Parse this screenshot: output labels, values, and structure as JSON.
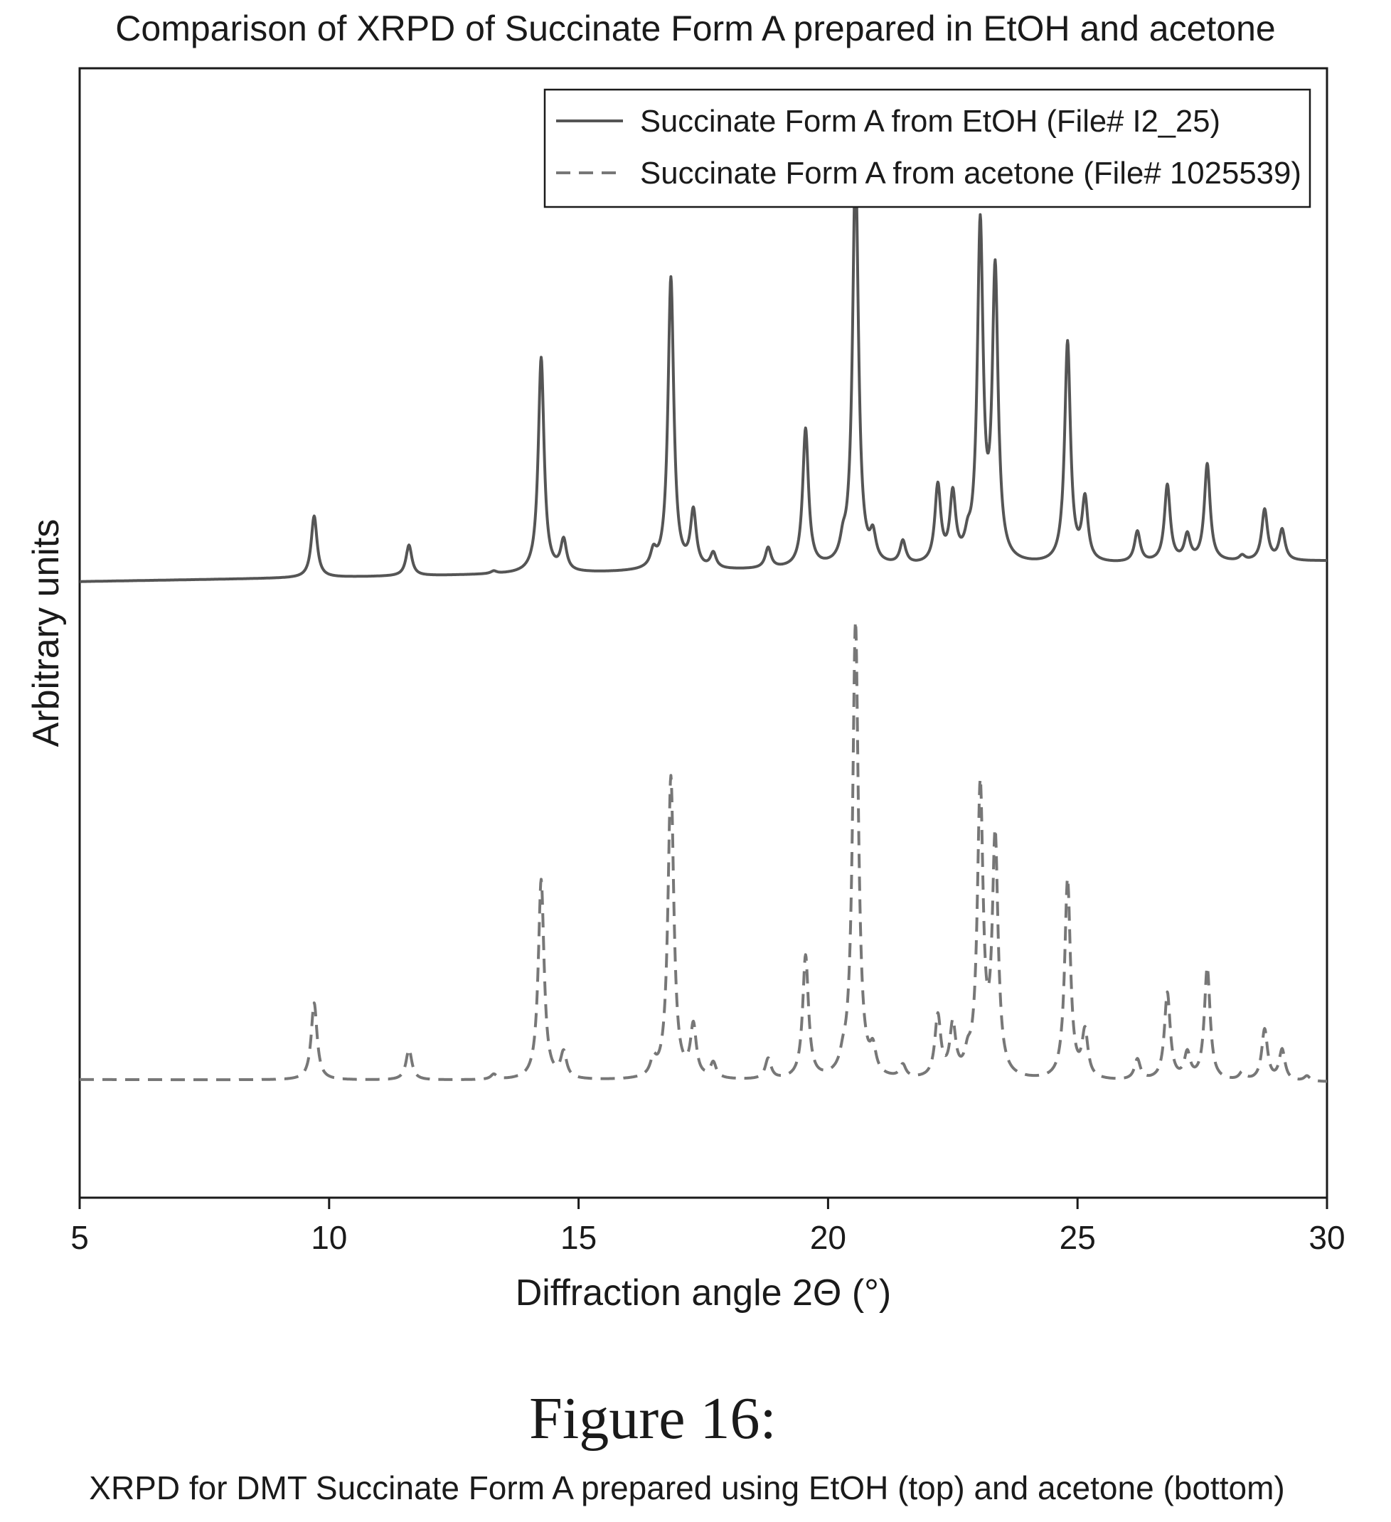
{
  "chart_data": {
    "type": "line",
    "title": "Comparison of XRPD of Succinate Form A prepared in EtOH and acetone",
    "xlabel": "Diffraction angle 2Θ (°)",
    "ylabel": "Arbitrary units",
    "xlim": [
      5,
      30
    ],
    "x_ticks": [
      5,
      10,
      15,
      20,
      25,
      30
    ],
    "x_tick_labels": [
      "5",
      "10",
      "15",
      "20",
      "25",
      "30"
    ],
    "y_ticks": [],
    "grid": false,
    "legend_position": "top-right",
    "series": [
      {
        "name": "Succinate Form A from EtOH (File# I2_25)",
        "style": "solid",
        "color": "#555555",
        "baseline": 0.35,
        "baseline_end": 0.39,
        "peaks": [
          [
            9.7,
            0.12
          ],
          [
            11.6,
            0.06
          ],
          [
            13.3,
            0.005
          ],
          [
            14.25,
            0.42
          ],
          [
            14.7,
            0.06
          ],
          [
            16.5,
            0.03
          ],
          [
            16.85,
            0.57
          ],
          [
            17.3,
            0.11
          ],
          [
            17.7,
            0.03
          ],
          [
            18.8,
            0.04
          ],
          [
            19.55,
            0.27
          ],
          [
            20.3,
            0.03
          ],
          [
            20.55,
            0.79
          ],
          [
            20.9,
            0.05
          ],
          [
            21.5,
            0.045
          ],
          [
            22.2,
            0.15
          ],
          [
            22.5,
            0.13
          ],
          [
            22.8,
            0.03
          ],
          [
            23.05,
            0.65
          ],
          [
            23.35,
            0.56
          ],
          [
            24.8,
            0.43
          ],
          [
            25.15,
            0.12
          ],
          [
            26.2,
            0.06
          ],
          [
            26.8,
            0.15
          ],
          [
            27.2,
            0.05
          ],
          [
            27.6,
            0.19
          ],
          [
            28.3,
            0.01
          ],
          [
            28.75,
            0.1
          ],
          [
            29.1,
            0.06
          ]
        ]
      },
      {
        "name": "Succinate Form A from acetone (File# 1025539)",
        "style": "dashed",
        "color": "#777777",
        "baseline": -0.62,
        "baseline_end": -0.625,
        "peaks": [
          [
            9.7,
            0.15
          ],
          [
            11.6,
            0.06
          ],
          [
            13.3,
            0.01
          ],
          [
            14.25,
            0.39
          ],
          [
            14.7,
            0.05
          ],
          [
            16.5,
            0.03
          ],
          [
            16.85,
            0.59
          ],
          [
            17.3,
            0.1
          ],
          [
            17.7,
            0.03
          ],
          [
            18.8,
            0.04
          ],
          [
            19.55,
            0.24
          ],
          [
            20.3,
            0.02
          ],
          [
            20.55,
            0.89
          ],
          [
            20.9,
            0.045
          ],
          [
            21.5,
            0.025
          ],
          [
            22.2,
            0.12
          ],
          [
            22.5,
            0.1
          ],
          [
            22.8,
            0.03
          ],
          [
            23.05,
            0.56
          ],
          [
            23.35,
            0.46
          ],
          [
            24.8,
            0.39
          ],
          [
            25.15,
            0.09
          ],
          [
            26.2,
            0.04
          ],
          [
            26.8,
            0.17
          ],
          [
            27.2,
            0.05
          ],
          [
            27.6,
            0.22
          ],
          [
            28.3,
            0.015
          ],
          [
            28.75,
            0.1
          ],
          [
            29.1,
            0.06
          ],
          [
            29.6,
            0.01
          ]
        ]
      }
    ],
    "peak_width_2theta": 0.07
  },
  "figure": {
    "number": "Figure 16:",
    "caption": "XRPD for DMT Succinate Form A prepared using EtOH (top) and acetone (bottom)"
  }
}
